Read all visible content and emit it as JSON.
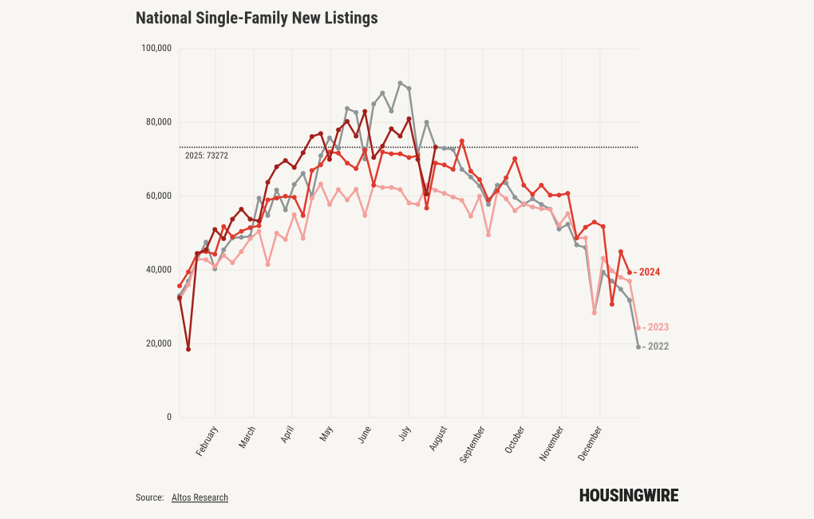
{
  "chart_data": {
    "type": "line",
    "title": "National Single-Family New Listings",
    "xlim": [
      0,
      52
    ],
    "xticks": [
      {
        "value": 4.07,
        "label": "February"
      },
      {
        "value": 8.4,
        "label": "March"
      },
      {
        "value": 12.75,
        "label": "April"
      },
      {
        "value": 17.1,
        "label": "May"
      },
      {
        "value": 21.5,
        "label": "June"
      },
      {
        "value": 25.95,
        "label": "July"
      },
      {
        "value": 30.1,
        "label": "August"
      },
      {
        "value": 34.4,
        "label": "September"
      },
      {
        "value": 38.9,
        "label": "October"
      },
      {
        "value": 43.3,
        "label": "November"
      },
      {
        "value": 47.65,
        "label": "December"
      }
    ],
    "ylim": [
      0,
      100000
    ],
    "yticks": [
      0,
      {
        "value": 20000,
        "label": "20,000"
      },
      {
        "value": 40000,
        "label": "40,000"
      },
      {
        "value": 60000,
        "label": "60,000"
      },
      {
        "value": 80000,
        "label": "80,000"
      },
      {
        "value": 100000,
        "label": "100,000"
      }
    ],
    "grid": true,
    "reference_line": {
      "value": 73272,
      "label": "2025: 73272"
    },
    "series": [
      {
        "name": "2022",
        "color": "#8e9597",
        "values": [
          33100,
          37000,
          42900,
          47600,
          40300,
          45500,
          48700,
          48900,
          49100,
          59500,
          54800,
          61700,
          56300,
          63200,
          66200,
          60000,
          71000,
          75800,
          73000,
          83800,
          82700,
          70100,
          85000,
          88000,
          83100,
          90700,
          89200,
          71600,
          80100,
          73400,
          73000,
          72700,
          67300,
          65200,
          62800,
          57800,
          63000,
          63600,
          59700,
          57800,
          59300,
          57800,
          56500,
          51100,
          52400,
          46800,
          46100,
          28400,
          39400,
          37000,
          34800,
          31800,
          19100
        ]
      },
      {
        "name": "2023",
        "color": "#f4a09c",
        "values": [
          32000,
          36000,
          43000,
          42800,
          41000,
          44000,
          42000,
          45000,
          48500,
          50500,
          41500,
          50000,
          48300,
          55000,
          48600,
          59500,
          63300,
          57800,
          61800,
          59000,
          61900,
          54800,
          63000,
          62400,
          62400,
          61800,
          58200,
          57800,
          63000,
          61600,
          60800,
          59800,
          58900,
          54600,
          60000,
          49500,
          61300,
          59300,
          56100,
          58000,
          57100,
          56600,
          56400,
          52200,
          55300,
          48700,
          48700,
          28400,
          43200,
          39800,
          38000,
          37000,
          24300
        ]
      },
      {
        "name": "2024",
        "color": "#e03a2e",
        "values": [
          35700,
          39500,
          44500,
          45000,
          44300,
          51800,
          49000,
          50500,
          51500,
          52000,
          59000,
          59500,
          60000,
          59700,
          54800,
          67000,
          68500,
          72000,
          71700,
          69000,
          67500,
          72500,
          63000,
          72000,
          71500,
          71500,
          70500,
          71000,
          56800,
          69000,
          68500,
          67300,
          75000,
          66800,
          64500,
          59000,
          61500,
          65000,
          70200,
          63000,
          60500,
          63000,
          60300,
          60300,
          60800,
          48700,
          51600,
          53000,
          51800,
          30700,
          45000,
          39300,
          null
        ]
      },
      {
        "color": "#a31f1a",
        "values": [
          32500,
          18500,
          44500,
          45500,
          51000,
          48500,
          53800,
          56500,
          53800,
          53300,
          63800,
          68000,
          69700,
          67800,
          71800,
          76200,
          77000,
          70000,
          78000,
          80300,
          76300,
          83000,
          70500,
          73600,
          78300,
          76300,
          81000,
          70000,
          60600,
          73300,
          null,
          null,
          null,
          null,
          null,
          null,
          null,
          null,
          null,
          null,
          null,
          null,
          null,
          null,
          null,
          null,
          null,
          null,
          null,
          null,
          null,
          null,
          null
        ]
      }
    ]
  },
  "source_label": "Source:",
  "source": "Altos Research",
  "logo": "HOUSINGWIRE"
}
